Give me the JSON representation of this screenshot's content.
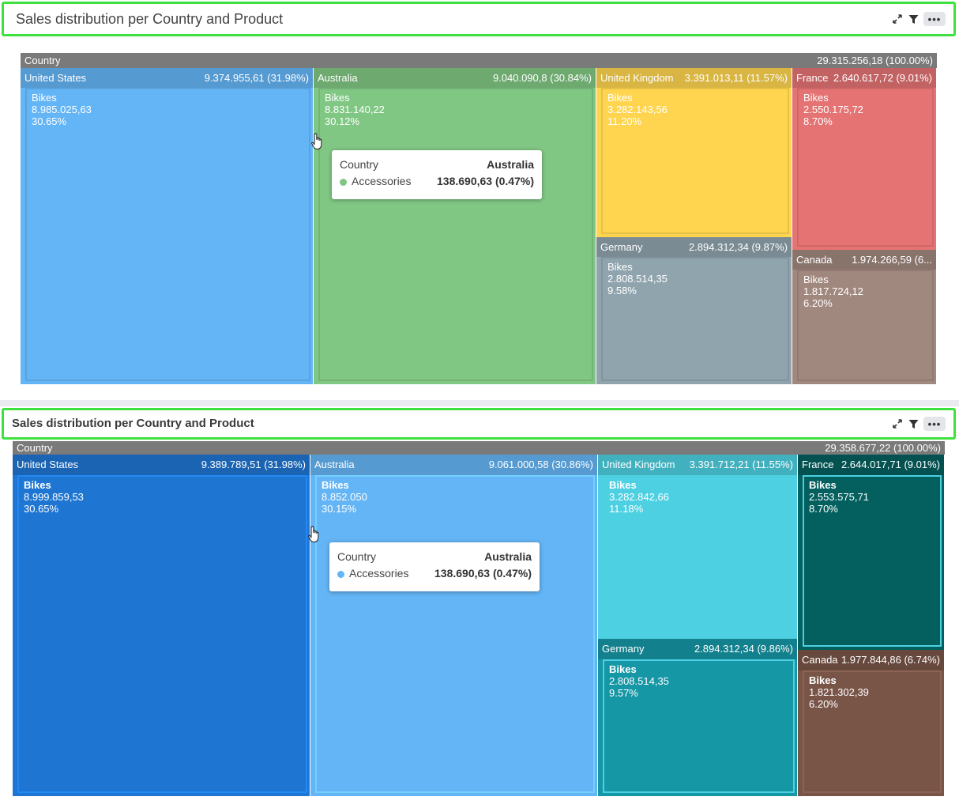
{
  "icons": {
    "expand": "expand-icon",
    "filter": "filter-icon",
    "more": "more-icon"
  },
  "chart_data": [
    {
      "type": "treemap",
      "title": "Sales distribution per Country and Product",
      "root": {
        "label": "Country",
        "value": "29.315.256,18 (100.00%)"
      },
      "colors": [
        "#64b5f6",
        "#81c784",
        "#ffd54f",
        "#90a4ae",
        "#e57373",
        "#a1887f"
      ],
      "countries": [
        {
          "name": "United States",
          "value": "9.374.955,61 (31.98%)",
          "leaf": {
            "name": "Bikes",
            "value": "8.985.025,63",
            "pct": "30.65%"
          }
        },
        {
          "name": "Australia",
          "value": "9.040.090,8 (30.84%)",
          "leaf": {
            "name": "Bikes",
            "value": "8.831.140,22",
            "pct": "30.12%"
          }
        },
        {
          "name": "United Kingdom",
          "value": "3.391.013,11 (11.57%)",
          "leaf": {
            "name": "Bikes",
            "value": "3.282.143,56",
            "pct": "11.20%"
          }
        },
        {
          "name": "Germany",
          "value": "2.894.312,34 (9.87%)",
          "leaf": {
            "name": "Bikes",
            "value": "2.808.514,35",
            "pct": "9.58%"
          }
        },
        {
          "name": "France",
          "value": "2.640.617,72 (9.01%)",
          "leaf": {
            "name": "Bikes",
            "value": "2.550.175,72",
            "pct": "8.70%"
          }
        },
        {
          "name": "Canada",
          "value": "1.974.266,59 (6...",
          "leaf": {
            "name": "Bikes",
            "value": "1.817.724,12",
            "pct": "6.20%"
          }
        }
      ],
      "tooltip": {
        "label": "Country",
        "country": "Australia",
        "item": "Accessories",
        "item_value": "138.690,63 (0.47%)"
      }
    },
    {
      "type": "treemap",
      "title": "Sales distribution per Country and Product",
      "root": {
        "label": "Country",
        "value": "29.358.677,22 (100.00%)"
      },
      "colors": [
        "#1e76d2",
        "#64b5f6",
        "#4dd0e1",
        "#1597a6",
        "#03605f",
        "#795548"
      ],
      "countries": [
        {
          "name": "United States",
          "value": "9.389.789,51 (31.98%)",
          "leaf": {
            "name": "Bikes",
            "value": "8.999.859,53",
            "pct": "30.65%"
          }
        },
        {
          "name": "Australia",
          "value": "9.061.000,58 (30.86%)",
          "leaf": {
            "name": "Bikes",
            "value": "8.852.050",
            "pct": "30.15%"
          }
        },
        {
          "name": "United Kingdom",
          "value": "3.391.712,21 (11.55%)",
          "leaf": {
            "name": "Bikes",
            "value": "3.282.842,66",
            "pct": "11.18%"
          }
        },
        {
          "name": "Germany",
          "value": "2.894.312,34 (9.86%)",
          "leaf": {
            "name": "Bikes",
            "value": "2.808.514,35",
            "pct": "9.57%"
          }
        },
        {
          "name": "France",
          "value": "2.644.017,71 (9.01%)",
          "leaf": {
            "name": "Bikes",
            "value": "2.553.575,71",
            "pct": "8.70%"
          }
        },
        {
          "name": "Canada",
          "value": "1.977.844,86 (6.74%)",
          "leaf": {
            "name": "Bikes",
            "value": "1.821.302,39",
            "pct": "6.20%"
          }
        }
      ],
      "tooltip": {
        "label": "Country",
        "country": "Australia",
        "item": "Accessories",
        "item_value": "138.690,63 (0.47%)"
      }
    }
  ]
}
